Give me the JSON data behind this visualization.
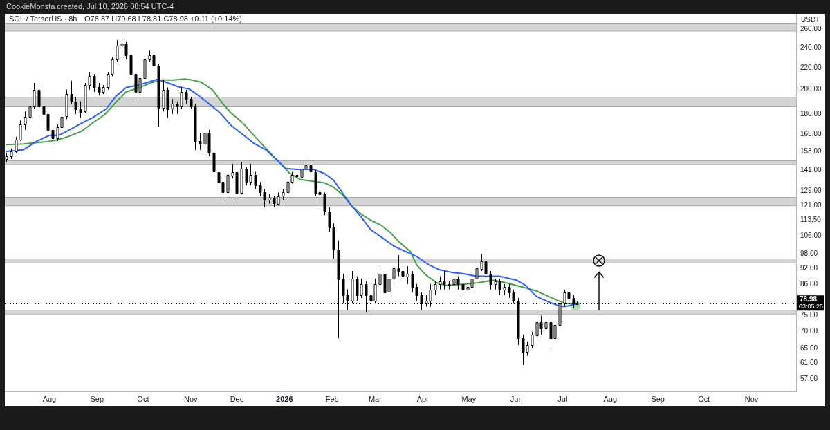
{
  "chart_data": {
    "type": "candlestick",
    "title": "SOL / TetherUS · 8h",
    "subtitle": "O78.87 H79.68 L78.81 C78.98 +0.11 (+0.14%)",
    "ylabel": "USDT",
    "annotations": [
      "CookieMonsta created, Jul 10, 2026 08:54 UTC-4",
      "03:05:25"
    ],
    "color": "#000000",
    "log": true,
    "xlim": [
      "2025-07-03",
      "2026-11-30"
    ],
    "xticks": [
      {
        "value": "2025-08-01",
        "label": "Aug"
      },
      {
        "value": "2025-09-01",
        "label": "Sep"
      },
      {
        "value": "2025-10-01",
        "label": "Oct"
      },
      {
        "value": "2025-11-01",
        "label": "Nov"
      },
      {
        "value": "2025-12-01",
        "label": "Dec"
      },
      {
        "value": "2026-01-01",
        "label": "2026"
      },
      {
        "value": "2026-02-01",
        "label": "Feb"
      },
      {
        "value": "2026-03-01",
        "label": "Mar"
      },
      {
        "value": "2026-04-01",
        "label": "Apr"
      },
      {
        "value": "2026-05-01",
        "label": "May"
      },
      {
        "value": "2026-06-01",
        "label": "Jun"
      },
      {
        "value": "2026-07-01",
        "label": "Jul"
      },
      {
        "value": "2026-08-01",
        "label": "Aug"
      },
      {
        "value": "2026-09-01",
        "label": "Sep"
      },
      {
        "value": "2026-10-01",
        "label": "Oct"
      },
      {
        "value": "2026-11-01",
        "label": "Nov"
      }
    ],
    "ylim": [
      54,
      278
    ],
    "yticks": [
      {
        "value": 57,
        "label": "57.00"
      },
      {
        "value": 61,
        "label": "61.00"
      },
      {
        "value": 65,
        "label": "65.00"
      },
      {
        "value": 70,
        "label": "70.00"
      },
      {
        "value": 75,
        "label": "75.00"
      },
      {
        "value": 86,
        "label": "86.00"
      },
      {
        "value": 92,
        "label": "92.00"
      },
      {
        "value": 98,
        "label": "98.00"
      },
      {
        "value": 106,
        "label": "106.00"
      },
      {
        "value": 113.5,
        "label": "113.50"
      },
      {
        "value": 121,
        "label": "121.00"
      },
      {
        "value": 129,
        "label": "129.00"
      },
      {
        "value": 141,
        "label": "141.00"
      },
      {
        "value": 153,
        "label": "153.00"
      },
      {
        "value": 165,
        "label": "165.00"
      },
      {
        "value": 180,
        "label": "180.00"
      },
      {
        "value": 200,
        "label": "200.00"
      },
      {
        "value": 220,
        "label": "220.00"
      },
      {
        "value": 240,
        "label": "240.00"
      },
      {
        "value": 260,
        "label": "260.00"
      }
    ],
    "x": [
      "2025-07-04",
      "2025-07-07",
      "2025-07-10",
      "2025-07-13",
      "2025-07-16",
      "2025-07-19",
      "2025-07-22",
      "2025-07-25",
      "2025-07-28",
      "2025-07-31",
      "2025-08-03",
      "2025-08-06",
      "2025-08-09",
      "2025-08-12",
      "2025-08-15",
      "2025-08-18",
      "2025-08-21",
      "2025-08-24",
      "2025-08-27",
      "2025-08-30",
      "2025-09-02",
      "2025-09-05",
      "2025-09-08",
      "2025-09-11",
      "2025-09-14",
      "2025-09-17",
      "2025-09-20",
      "2025-09-23",
      "2025-09-26",
      "2025-09-29",
      "2025-10-02",
      "2025-10-05",
      "2025-10-08",
      "2025-10-11",
      "2025-10-14",
      "2025-10-17",
      "2025-10-20",
      "2025-10-23",
      "2025-10-26",
      "2025-10-29",
      "2025-11-01",
      "2025-11-04",
      "2025-11-07",
      "2025-11-10",
      "2025-11-13",
      "2025-11-16",
      "2025-11-19",
      "2025-11-22",
      "2025-11-25",
      "2025-11-28",
      "2025-12-01",
      "2025-12-04",
      "2025-12-07",
      "2025-12-10",
      "2025-12-13",
      "2025-12-16",
      "2025-12-19",
      "2025-12-22",
      "2025-12-25",
      "2025-12-28",
      "2025-12-31",
      "2026-01-03",
      "2026-01-06",
      "2026-01-09",
      "2026-01-12",
      "2026-01-15",
      "2026-01-18",
      "2026-01-21",
      "2026-01-24",
      "2026-01-27",
      "2026-01-30",
      "2026-02-02",
      "2026-02-05",
      "2026-02-08",
      "2026-02-11",
      "2026-02-14",
      "2026-02-17",
      "2026-02-20",
      "2026-02-23",
      "2026-02-26",
      "2026-03-01",
      "2026-03-04",
      "2026-03-07",
      "2026-03-10",
      "2026-03-13",
      "2026-03-16",
      "2026-03-19",
      "2026-03-22",
      "2026-03-25",
      "2026-03-28",
      "2026-03-31",
      "2026-04-03",
      "2026-04-06",
      "2026-04-09",
      "2026-04-12",
      "2026-04-15",
      "2026-04-18",
      "2026-04-21",
      "2026-04-24",
      "2026-04-27",
      "2026-04-30",
      "2026-05-03",
      "2026-05-06",
      "2026-05-09",
      "2026-05-12",
      "2026-05-15",
      "2026-05-18",
      "2026-05-21",
      "2026-05-24",
      "2026-05-27",
      "2026-05-30",
      "2026-06-02",
      "2026-06-05",
      "2026-06-08",
      "2026-06-11",
      "2026-06-14",
      "2026-06-17",
      "2026-06-20",
      "2026-06-23",
      "2026-06-26",
      "2026-06-29",
      "2026-07-02",
      "2026-07-05",
      "2026-07-08",
      "2026-07-10T08:00"
    ],
    "ohlc": [
      [
        148,
        152,
        146,
        150
      ],
      [
        150,
        155,
        148,
        153
      ],
      [
        153,
        163,
        152,
        161
      ],
      [
        161,
        175,
        160,
        172
      ],
      [
        172,
        182,
        168,
        178
      ],
      [
        178,
        190,
        176,
        186
      ],
      [
        186,
        206,
        184,
        200
      ],
      [
        200,
        202,
        182,
        186
      ],
      [
        186,
        190,
        176,
        180
      ],
      [
        180,
        182,
        165,
        168
      ],
      [
        168,
        170,
        157,
        162
      ],
      [
        162,
        172,
        160,
        170
      ],
      [
        170,
        180,
        168,
        178
      ],
      [
        178,
        200,
        176,
        196
      ],
      [
        196,
        208,
        188,
        190
      ],
      [
        190,
        194,
        180,
        184
      ],
      [
        184,
        190,
        177,
        182
      ],
      [
        182,
        206,
        181,
        204
      ],
      [
        204,
        216,
        200,
        212
      ],
      [
        212,
        214,
        198,
        202
      ],
      [
        202,
        206,
        195,
        198
      ],
      [
        198,
        204,
        196,
        202
      ],
      [
        202,
        216,
        200,
        214
      ],
      [
        214,
        230,
        212,
        228
      ],
      [
        228,
        248,
        226,
        242
      ],
      [
        242,
        252,
        236,
        244
      ],
      [
        244,
        246,
        228,
        232
      ],
      [
        232,
        234,
        210,
        214
      ],
      [
        214,
        216,
        191,
        198
      ],
      [
        198,
        214,
        196,
        210
      ],
      [
        210,
        230,
        208,
        228
      ],
      [
        228,
        237,
        226,
        232
      ],
      [
        232,
        234,
        218,
        222
      ],
      [
        222,
        224,
        170,
        185
      ],
      [
        185,
        209,
        182,
        200
      ],
      [
        200,
        202,
        177,
        184
      ],
      [
        184,
        192,
        180,
        188
      ],
      [
        188,
        190,
        180,
        186
      ],
      [
        186,
        202,
        184,
        198
      ],
      [
        198,
        200,
        188,
        192
      ],
      [
        192,
        194,
        184,
        186
      ],
      [
        186,
        188,
        154,
        160
      ],
      [
        160,
        166,
        154,
        158
      ],
      [
        158,
        171,
        156,
        166
      ],
      [
        166,
        168,
        150,
        152
      ],
      [
        152,
        154,
        138,
        140
      ],
      [
        140,
        142,
        130,
        134
      ],
      [
        134,
        136,
        123,
        128
      ],
      [
        128,
        140,
        126,
        138
      ],
      [
        138,
        145,
        136,
        140
      ],
      [
        140,
        142,
        124,
        128
      ],
      [
        128,
        146,
        127,
        142
      ],
      [
        142,
        143,
        132,
        134
      ],
      [
        134,
        145,
        132,
        138
      ],
      [
        138,
        140,
        130,
        132
      ],
      [
        132,
        134,
        126,
        128
      ],
      [
        128,
        130,
        120,
        124
      ],
      [
        124,
        127,
        122,
        125
      ],
      [
        125,
        126,
        120,
        122
      ],
      [
        122,
        128,
        121,
        126
      ],
      [
        126,
        130,
        124,
        128
      ],
      [
        128,
        135,
        127,
        134
      ],
      [
        134,
        140,
        133,
        138
      ],
      [
        138,
        139,
        135,
        137
      ],
      [
        137,
        145,
        136,
        142
      ],
      [
        142,
        149,
        140,
        144
      ],
      [
        144,
        146,
        138,
        140
      ],
      [
        140,
        141,
        126,
        128
      ],
      [
        128,
        130,
        120,
        127
      ],
      [
        127,
        128,
        116,
        118
      ],
      [
        118,
        120,
        108,
        110
      ],
      [
        110,
        112,
        96,
        100
      ],
      [
        100,
        104,
        68,
        88
      ],
      [
        88,
        90,
        79,
        82
      ],
      [
        82,
        84,
        77,
        80
      ],
      [
        80,
        91,
        79,
        88
      ],
      [
        88,
        89,
        80,
        82
      ],
      [
        82,
        88,
        81,
        86
      ],
      [
        86,
        87,
        76,
        82
      ],
      [
        82,
        91,
        78,
        80
      ],
      [
        80,
        88,
        79,
        86
      ],
      [
        86,
        93,
        85,
        90
      ],
      [
        90,
        91,
        81,
        83
      ],
      [
        83,
        89,
        82,
        88
      ],
      [
        88,
        93,
        86,
        92
      ],
      [
        92,
        97.5,
        89,
        91
      ],
      [
        91,
        92,
        87,
        89
      ],
      [
        89,
        93,
        86,
        90
      ],
      [
        90,
        91,
        83,
        85
      ],
      [
        85,
        86,
        80,
        82
      ],
      [
        82,
        83,
        77,
        79
      ],
      [
        79,
        82,
        78,
        80
      ],
      [
        80,
        86,
        78,
        84
      ],
      [
        84,
        87,
        82,
        86
      ],
      [
        86,
        89,
        84,
        87
      ],
      [
        87,
        91,
        84,
        86
      ],
      [
        86,
        87,
        84,
        86
      ],
      [
        86,
        89.5,
        84,
        88
      ],
      [
        88,
        89,
        84,
        86
      ],
      [
        86,
        87,
        82,
        84
      ],
      [
        84,
        86,
        83,
        85
      ],
      [
        85,
        89,
        84,
        88
      ],
      [
        88,
        93,
        87,
        92
      ],
      [
        92,
        98,
        91,
        95
      ],
      [
        95,
        96,
        88,
        90
      ],
      [
        90,
        91,
        84,
        86
      ],
      [
        86,
        88,
        84,
        87
      ],
      [
        87,
        88,
        82,
        84
      ],
      [
        84,
        86,
        82,
        85
      ],
      [
        85,
        86,
        81,
        83
      ],
      [
        83,
        84,
        79,
        80
      ],
      [
        80,
        81,
        66,
        68
      ],
      [
        68,
        69,
        60.5,
        64
      ],
      [
        64,
        67,
        63,
        66
      ],
      [
        66,
        70,
        65,
        69
      ],
      [
        69,
        76,
        68,
        73
      ],
      [
        73,
        75,
        69,
        71
      ],
      [
        71,
        75,
        70,
        73
      ],
      [
        73,
        74,
        64.8,
        68
      ],
      [
        68,
        73,
        67,
        72
      ],
      [
        72,
        80,
        71,
        79
      ],
      [
        79,
        84,
        78,
        83
      ],
      [
        83,
        84,
        80,
        81
      ],
      [
        81,
        82,
        77.5,
        79
      ],
      [
        78.87,
        79.68,
        78.81,
        78.98
      ]
    ],
    "series": [
      {
        "type": "line",
        "color": "#2962ff",
        "x": [
          "2025-07-04",
          "2025-07-15",
          "2025-07-23",
          "2025-08-01",
          "2025-08-07",
          "2025-08-14",
          "2025-08-22",
          "2025-08-29",
          "2025-09-07",
          "2025-09-13",
          "2025-09-20",
          "2025-09-28",
          "2025-10-04",
          "2025-10-10",
          "2025-10-15",
          "2025-10-24",
          "2025-10-31",
          "2025-11-06",
          "2025-11-12",
          "2025-11-20",
          "2025-11-27",
          "2025-12-05",
          "2025-12-12",
          "2025-12-20",
          "2025-12-27",
          "2026-01-02",
          "2026-01-09",
          "2026-01-15",
          "2026-01-20",
          "2026-01-27",
          "2026-02-02",
          "2026-02-08",
          "2026-02-14",
          "2026-02-20",
          "2026-02-26",
          "2026-03-06",
          "2026-03-13",
          "2026-03-21",
          "2026-03-28",
          "2026-04-05",
          "2026-04-12",
          "2026-04-20",
          "2026-04-27",
          "2026-05-06",
          "2026-05-14",
          "2026-05-21",
          "2026-06-01",
          "2026-06-07",
          "2026-06-14",
          "2026-06-22",
          "2026-06-29",
          "2026-07-02",
          "2026-07-06",
          "2026-07-10"
        ],
        "values": [
          153,
          154,
          159.5,
          164,
          164,
          168,
          173,
          177,
          184,
          194,
          202,
          204,
          206.5,
          209,
          207,
          202.5,
          200.5,
          195,
          189,
          181,
          171.5,
          164.5,
          158.5,
          154,
          147.5,
          142,
          141.5,
          141.5,
          141.5,
          139,
          135,
          127.5,
          120.5,
          115,
          109,
          105,
          101.5,
          99,
          97,
          93.5,
          91.5,
          90.5,
          90,
          89,
          89,
          89,
          87.5,
          85.5,
          81.5,
          79.6,
          78.2,
          78,
          78.4,
          78.9
        ]
      },
      {
        "type": "line",
        "color": "#43a047",
        "x": [
          "2025-07-04",
          "2025-07-15",
          "2025-07-30",
          "2025-08-07",
          "2025-08-14",
          "2025-08-22",
          "2025-08-29",
          "2025-09-06",
          "2025-09-13",
          "2025-09-20",
          "2025-09-28",
          "2025-10-06",
          "2025-10-13",
          "2025-10-21",
          "2025-10-28",
          "2025-11-02",
          "2025-11-08",
          "2025-11-15",
          "2025-11-22",
          "2025-11-27",
          "2025-12-05",
          "2025-12-12",
          "2025-12-20",
          "2025-12-27",
          "2026-01-04",
          "2026-01-11",
          "2026-01-19",
          "2026-01-27",
          "2026-02-02",
          "2026-02-08",
          "2026-02-14",
          "2026-02-20",
          "2026-02-26",
          "2026-03-05",
          "2026-03-11",
          "2026-03-17",
          "2026-03-24",
          "2026-03-28",
          "2026-04-03",
          "2026-04-10",
          "2026-04-16",
          "2026-04-28",
          "2026-05-07",
          "2026-05-17",
          "2026-05-25",
          "2026-06-04",
          "2026-06-14",
          "2026-06-22",
          "2026-07-02",
          "2026-07-10"
        ],
        "values": [
          157.5,
          158,
          159.5,
          161,
          163.5,
          167,
          173,
          179.5,
          189,
          198,
          201.5,
          206,
          208.5,
          208.5,
          209.5,
          208.5,
          206.5,
          200,
          188,
          181,
          173,
          164,
          155,
          147.5,
          139.5,
          135.5,
          134.5,
          133.5,
          131,
          126.5,
          120.5,
          116.5,
          113.5,
          111,
          107.5,
          103,
          99,
          93.5,
          89.5,
          86.5,
          85.5,
          86,
          86.5,
          87.5,
          86.5,
          85,
          83.5,
          81.5,
          79.2,
          78.9
        ]
      }
    ],
    "bands": [
      {
        "axis": "y",
        "from": 258,
        "to": 267,
        "color": "#d4d4d4"
      },
      {
        "axis": "y",
        "from": 186,
        "to": 194,
        "color": "#d4d4d4"
      },
      {
        "axis": "y",
        "from": 144.5,
        "to": 147,
        "color": "#d4d4d4"
      },
      {
        "axis": "y",
        "from": 121,
        "to": 125.5,
        "color": "#d4d4d4"
      },
      {
        "axis": "y",
        "from": 94.3,
        "to": 96,
        "color": "#d4d4d4"
      },
      {
        "axis": "y",
        "from": 75.5,
        "to": 77,
        "color": "#d4d4d4"
      }
    ],
    "ref_lines": [
      {
        "axis": "y",
        "value": 78.98,
        "label": "78.98",
        "color": "#000000",
        "line_style": "dotted"
      }
    ]
  }
}
